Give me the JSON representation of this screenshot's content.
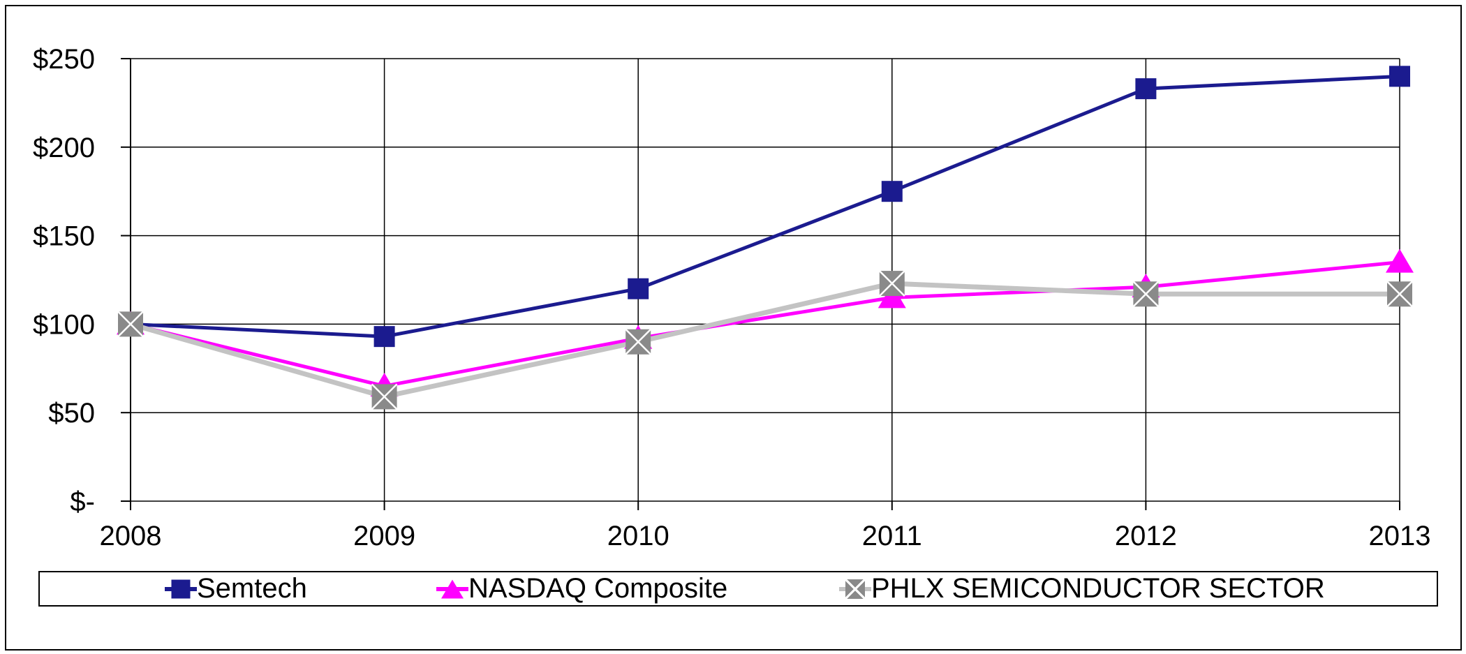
{
  "figure": {
    "background_color": "#FFFFFF",
    "border_color": "#000000",
    "title": ""
  },
  "chart_data": {
    "type": "line",
    "categories": [
      "2008",
      "2009",
      "2010",
      "2011",
      "2012",
      "2013"
    ],
    "series": [
      {
        "name": "Semtech",
        "color": "#1B1B8F",
        "marker": "square",
        "marker_color": "#1B1B8F",
        "line_width": 5,
        "values": [
          100,
          93,
          120,
          175,
          233,
          240
        ]
      },
      {
        "name": "NASDAQ Composite",
        "color": "#FF00FF",
        "marker": "triangle-up",
        "marker_color": "#FF00FF",
        "line_width": 5,
        "values": [
          100,
          65,
          92,
          115,
          121,
          135
        ]
      },
      {
        "name": "PHLX SEMICONDUCTOR SECTOR",
        "color": "#C3C3C3",
        "marker": "square-with-x",
        "marker_color": "#8A8A8A",
        "marker_cross_color": "#FFFFFF",
        "line_width": 7,
        "values": [
          100,
          59,
          90,
          123,
          117,
          117
        ]
      }
    ],
    "xlabel": "",
    "ylabel": "",
    "ylim": [
      0,
      250
    ],
    "ytick_interval": 50,
    "y_ticks": [
      {
        "label": "$-",
        "value": 0
      },
      {
        "label": "$50",
        "value": 50
      },
      {
        "label": "$100",
        "value": 100
      },
      {
        "label": "$150",
        "value": 150
      },
      {
        "label": "$200",
        "value": 200
      },
      {
        "label": "$250",
        "value": 250
      }
    ],
    "grid": true,
    "gridline_color": "#000000",
    "legend_position": "bottom"
  }
}
